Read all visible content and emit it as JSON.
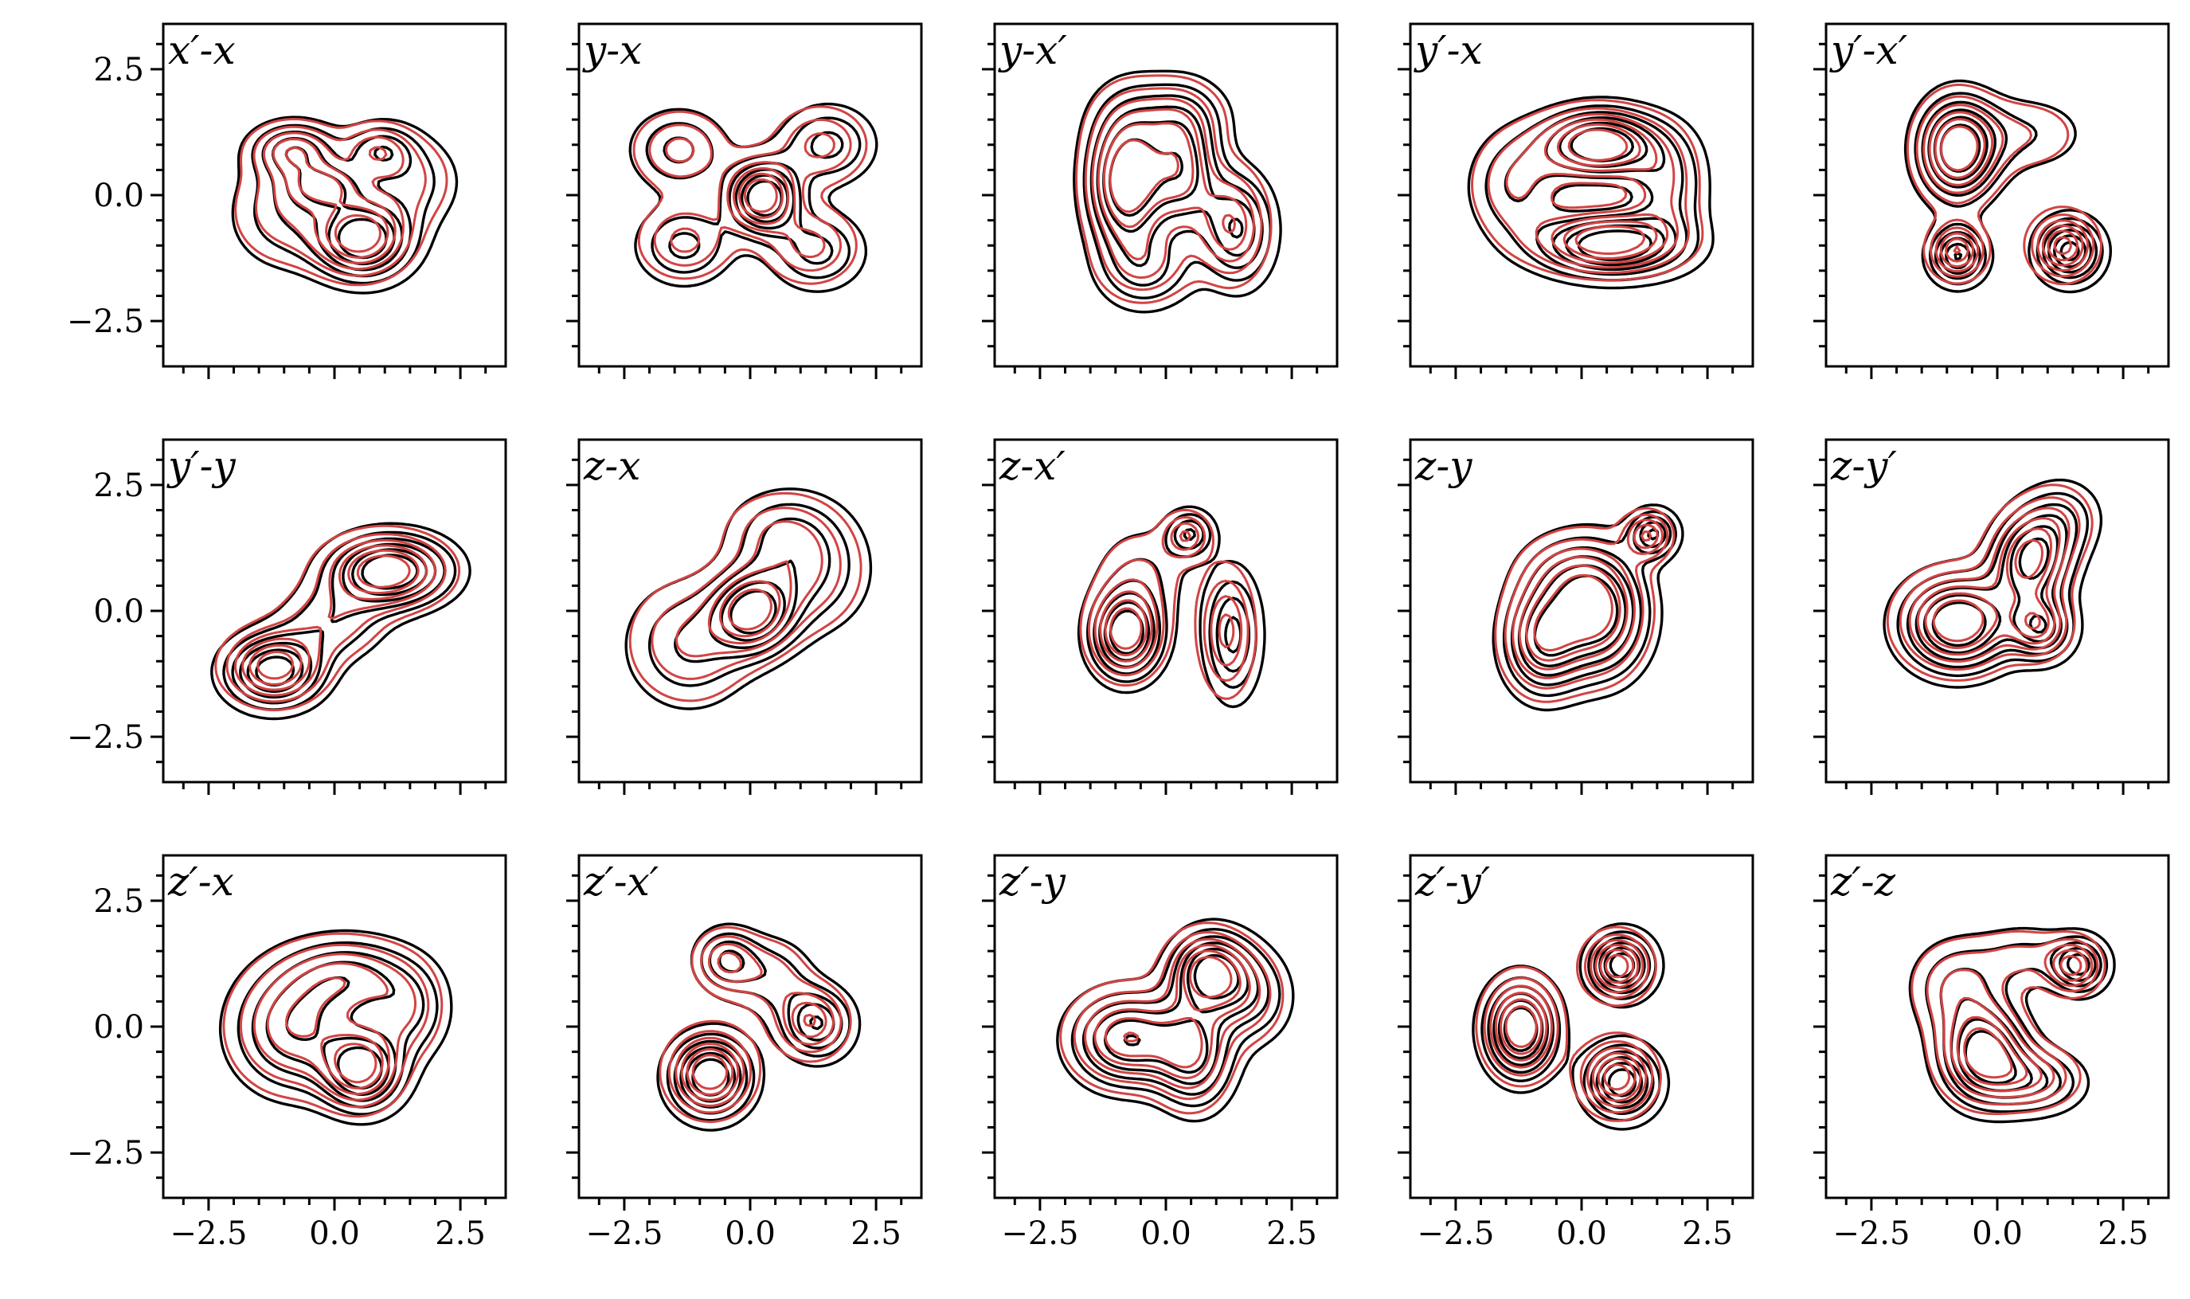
{
  "chart_data": {
    "type": "contour",
    "layout": {
      "rows": 3,
      "cols": 5,
      "sharex": true,
      "sharey": true
    },
    "xlim": [
      -3.4,
      3.4
    ],
    "ylim": [
      -3.4,
      3.4
    ],
    "xticks": [
      -2.5,
      0.0,
      2.5
    ],
    "yticks": [
      -2.5,
      0.0,
      2.5
    ],
    "tick_labels": [
      "−2.5",
      "0.0",
      "2.5"
    ],
    "minor_tick_step": 0.5,
    "contour_levels": 6,
    "colors": {
      "reference": "#000000",
      "model": "#d24444"
    },
    "panels": [
      {
        "title": "x′-x",
        "blobs": [
          [
            -0.8,
            0.9,
            0.55,
            0.35,
            0.8
          ],
          [
            0.8,
            0.9,
            0.45,
            0.35,
            0.6
          ],
          [
            -0.2,
            0.2,
            0.5,
            0.3,
            0.7
          ],
          [
            0.5,
            -0.8,
            0.6,
            0.5,
            1.3
          ],
          [
            -1.0,
            -0.3,
            0.7,
            0.7,
            0.5
          ],
          [
            1.5,
            0.3,
            0.6,
            0.6,
            0.4
          ]
        ]
      },
      {
        "title": "y-x",
        "blobs": [
          [
            0.2,
            0.0,
            0.45,
            0.45,
            1.3
          ],
          [
            -1.4,
            0.9,
            0.6,
            0.5,
            0.6
          ],
          [
            1.4,
            1.0,
            0.6,
            0.5,
            0.6
          ],
          [
            -1.3,
            -0.9,
            0.6,
            0.5,
            0.6
          ],
          [
            1.2,
            -1.0,
            0.6,
            0.5,
            0.6
          ]
        ]
      },
      {
        "title": "y-x′",
        "blobs": [
          [
            -0.8,
            0.3,
            0.5,
            0.9,
            1.3
          ],
          [
            0.3,
            0.5,
            0.45,
            0.8,
            0.9
          ],
          [
            1.3,
            -0.6,
            0.45,
            0.7,
            0.9
          ],
          [
            -0.4,
            -1.4,
            0.6,
            0.5,
            0.5
          ],
          [
            0.0,
            1.6,
            0.8,
            0.5,
            0.4
          ]
        ]
      },
      {
        "title": "y′-x",
        "blobs": [
          [
            0.3,
            1.0,
            0.75,
            0.45,
            1.2
          ],
          [
            0.5,
            -0.9,
            0.9,
            0.4,
            1.2
          ],
          [
            -1.3,
            0.2,
            0.6,
            0.7,
            0.5
          ],
          [
            1.6,
            0.2,
            0.5,
            0.7,
            0.5
          ]
        ]
      },
      {
        "title": "y′-x′",
        "blobs": [
          [
            -0.8,
            0.9,
            0.5,
            0.65,
            1.4
          ],
          [
            -0.8,
            -1.1,
            0.35,
            0.35,
            1.2
          ],
          [
            1.3,
            -1.0,
            0.4,
            0.4,
            1.3
          ],
          [
            0.5,
            1.2,
            0.8,
            0.5,
            0.4
          ]
        ]
      },
      {
        "title": "y′-y",
        "blobs": [
          [
            -1.2,
            -1.1,
            0.6,
            0.45,
            1.3
          ],
          [
            1.0,
            0.8,
            0.75,
            0.45,
            1.4
          ],
          [
            -0.1,
            -0.2,
            0.7,
            0.5,
            0.5
          ]
        ]
      },
      {
        "title": "z-x",
        "blobs": [
          [
            0.0,
            0.0,
            0.5,
            0.5,
            1.3
          ],
          [
            -1.2,
            -0.6,
            0.8,
            0.8,
            0.7
          ],
          [
            1.0,
            0.8,
            0.8,
            0.8,
            0.7
          ],
          [
            0.5,
            1.6,
            0.7,
            0.5,
            0.4
          ]
        ]
      },
      {
        "title": "z-x′",
        "blobs": [
          [
            -0.8,
            -0.4,
            0.45,
            0.55,
            1.5
          ],
          [
            1.2,
            -0.4,
            0.35,
            0.8,
            0.9
          ],
          [
            0.4,
            1.5,
            0.3,
            0.3,
            0.8
          ],
          [
            -0.5,
            0.8,
            0.6,
            0.6,
            0.4
          ]
        ]
      },
      {
        "title": "z-y",
        "blobs": [
          [
            -0.8,
            -0.5,
            0.5,
            0.7,
            1.0
          ],
          [
            0.3,
            0.0,
            0.6,
            0.8,
            1.2
          ],
          [
            1.3,
            1.5,
            0.3,
            0.3,
            0.9
          ],
          [
            -0.4,
            0.8,
            0.6,
            0.5,
            0.4
          ]
        ]
      },
      {
        "title": "z-y′",
        "blobs": [
          [
            -0.8,
            -0.2,
            0.7,
            0.6,
            1.2
          ],
          [
            0.6,
            1.0,
            0.5,
            0.6,
            1.0
          ],
          [
            0.8,
            -0.3,
            0.4,
            0.4,
            0.8
          ],
          [
            1.2,
            1.8,
            0.5,
            0.5,
            0.4
          ]
        ]
      },
      {
        "title": "z′-x",
        "blobs": [
          [
            -0.8,
            0.0,
            0.8,
            0.8,
            0.9
          ],
          [
            0.5,
            -0.8,
            0.5,
            0.5,
            1.2
          ],
          [
            0.3,
            1.0,
            0.8,
            0.5,
            0.7
          ],
          [
            1.4,
            0.3,
            0.5,
            0.6,
            0.5
          ]
        ]
      },
      {
        "title": "z′-x′",
        "blobs": [
          [
            -0.8,
            -0.9,
            0.5,
            0.5,
            1.5
          ],
          [
            1.2,
            0.1,
            0.45,
            0.45,
            1.0
          ],
          [
            -0.5,
            1.3,
            0.4,
            0.4,
            0.8
          ],
          [
            0.4,
            1.0,
            0.5,
            0.5,
            0.5
          ]
        ]
      },
      {
        "title": "z′-y",
        "blobs": [
          [
            -0.8,
            -0.2,
            0.7,
            0.6,
            1.0
          ],
          [
            0.8,
            1.1,
            0.5,
            0.5,
            1.1
          ],
          [
            0.5,
            -0.5,
            0.5,
            0.7,
            0.8
          ],
          [
            1.6,
            0.6,
            0.5,
            0.6,
            0.5
          ]
        ]
      },
      {
        "title": "z′-y′",
        "blobs": [
          [
            -1.2,
            0.0,
            0.45,
            0.6,
            1.4
          ],
          [
            0.7,
            1.2,
            0.4,
            0.4,
            1.3
          ],
          [
            0.7,
            -1.0,
            0.45,
            0.45,
            1.3
          ]
        ]
      },
      {
        "title": "z′-z",
        "blobs": [
          [
            -0.3,
            -0.5,
            0.55,
            0.6,
            1.3
          ],
          [
            1.5,
            1.2,
            0.35,
            0.35,
            1.0
          ],
          [
            0.7,
            -1.0,
            0.6,
            0.4,
            0.7
          ],
          [
            -0.8,
            0.8,
            0.6,
            0.6,
            0.6
          ],
          [
            0.5,
            1.4,
            0.6,
            0.4,
            0.4
          ]
        ]
      }
    ]
  }
}
